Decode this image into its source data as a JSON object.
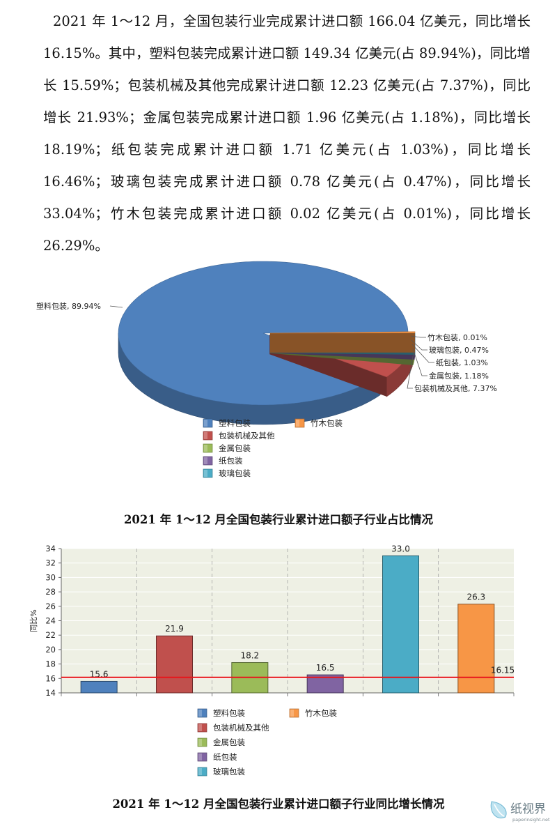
{
  "paragraph": "2021 年 1～12 月，全国包装行业完成累计进口额 166.04 亿美元，同比增长 16.15%。其中，塑料包装完成累计进口额 149.34 亿美元(占 89.94%)，同比增长 15.59%；包装机械及其他完成累计进口额 12.23 亿美元(占 7.37%)，同比增长 21.93%；金属包装完成累计进口额 1.96 亿美元(占 1.18%)，同比增长 18.19%；纸包装完成累计进口额 1.71 亿美元(占 1.03%)，同比增长 16.46%；玻璃包装完成累计进口额 0.78 亿美元(占 0.47%)，同比增长 33.04%；竹木包装完成累计进口额 0.02 亿美元(占 0.01%)，同比增长 26.29%。",
  "watermark": {
    "name": "纸视界",
    "url": "paperinsight.net"
  },
  "chart_data": [
    {
      "type": "pie",
      "title": "2021 年 1～12 月全国包装行业累计进口额子行业占比情况",
      "slices": [
        {
          "name": "塑料包装",
          "value": 89.94,
          "label": "塑料包装, 89.94%",
          "color": "#4f81bd"
        },
        {
          "name": "包装机械及其他",
          "value": 7.37,
          "label": "包装机械及其他, 7.37%",
          "color": "#c0504d"
        },
        {
          "name": "金属包装",
          "value": 1.18,
          "label": "金属包装, 1.18%",
          "color": "#9bbb59"
        },
        {
          "name": "纸包装",
          "value": 1.03,
          "label": "纸包装, 1.03%",
          "color": "#8064a2"
        },
        {
          "name": "玻璃包装",
          "value": 0.47,
          "label": "玻璃包装, 0.47%",
          "color": "#4bacc6"
        },
        {
          "name": "竹木包装",
          "value": 0.01,
          "label": "竹木包装, 0.01%",
          "color": "#f79646"
        }
      ],
      "legend": {
        "placement": "bottom",
        "items": [
          "塑料包装",
          "竹木包装",
          "包装机械及其他",
          "金属包装",
          "纸包装",
          "玻璃包装"
        ]
      }
    },
    {
      "type": "bar",
      "title": "2021 年 1～12 月全国包装行业累计进口额子行业同比增长情况",
      "ylabel": "同比%",
      "ylim": [
        14,
        34
      ],
      "yticks": [
        14,
        16,
        18,
        20,
        22,
        24,
        26,
        28,
        30,
        32,
        34
      ],
      "grid": true,
      "categories": [
        "塑料包装",
        "包装机械及其他",
        "金属包装",
        "纸包装",
        "玻璃包装",
        "竹木包装"
      ],
      "values": [
        15.6,
        21.9,
        18.2,
        16.5,
        33.0,
        26.3
      ],
      "value_labels": [
        "15.6",
        "21.9",
        "18.2",
        "16.5",
        "33.0",
        "26.3"
      ],
      "colors": [
        "#4f81bd",
        "#c0504d",
        "#9bbb59",
        "#8064a2",
        "#4bacc6",
        "#f79646"
      ],
      "reference_line": {
        "value": 16.15,
        "label": "16.15",
        "color": "#e8141b"
      },
      "legend": {
        "placement": "bottom",
        "items": [
          "塑料包装",
          "竹木包装",
          "包装机械及其他",
          "金属包装",
          "纸包装",
          "玻璃包装"
        ]
      }
    }
  ]
}
